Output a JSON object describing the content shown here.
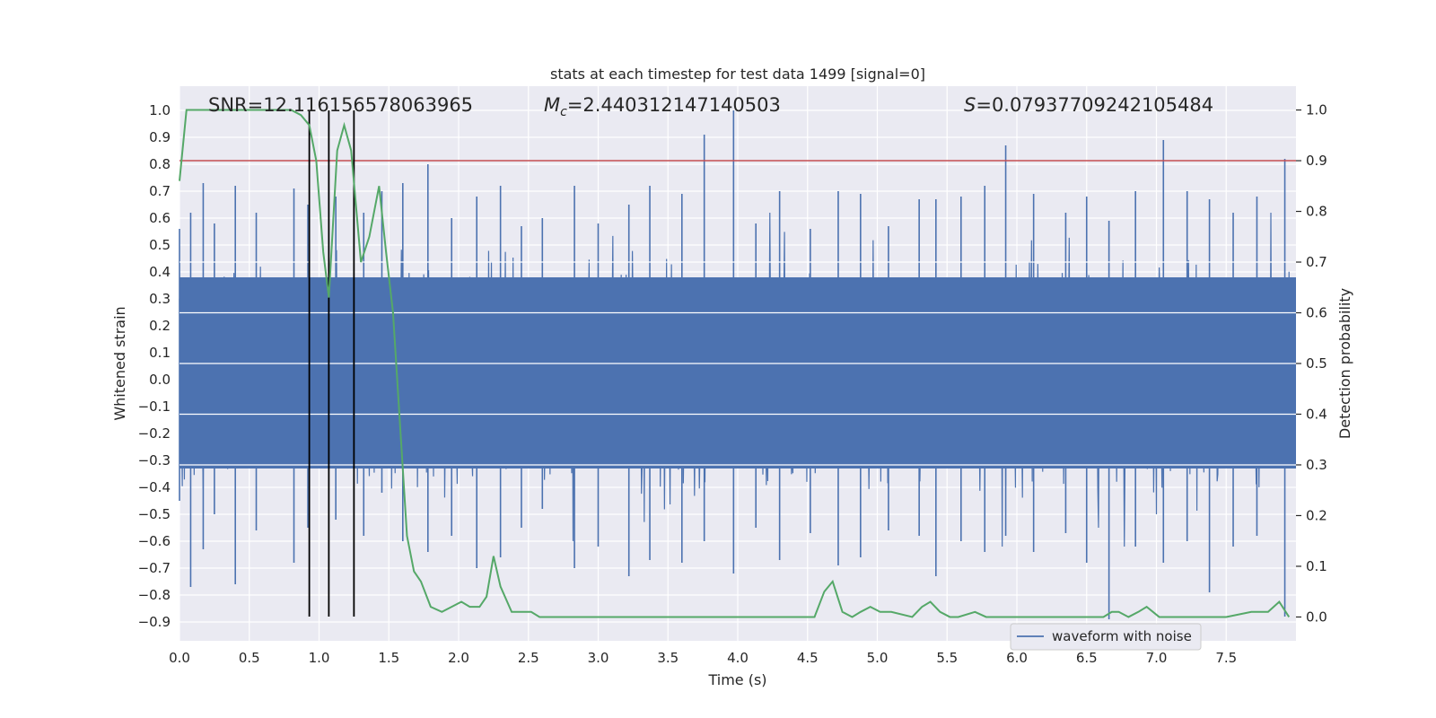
{
  "chart_data": {
    "type": "line",
    "title": "stats at each timestep for test data 1499 [signal=0]",
    "xlabel": "Time (s)",
    "ylabel": "Whitened strain",
    "y2label": "Detection probability",
    "xlim": [
      0.0,
      8.0
    ],
    "ylim": [
      -0.97,
      1.09
    ],
    "y2lim": [
      -0.047,
      1.047
    ],
    "xticks": [
      "0.0",
      "0.5",
      "1.0",
      "1.5",
      "2.0",
      "2.5",
      "3.0",
      "3.5",
      "4.0",
      "4.5",
      "5.0",
      "5.5",
      "6.0",
      "6.5",
      "7.0",
      "7.5"
    ],
    "yticks": [
      "−0.9",
      "−0.8",
      "−0.7",
      "−0.6",
      "−0.5",
      "−0.4",
      "−0.3",
      "−0.2",
      "−0.1",
      "0.0",
      "0.1",
      "0.2",
      "0.3",
      "0.4",
      "0.5",
      "0.6",
      "0.7",
      "0.8",
      "0.9",
      "1.0"
    ],
    "y2ticks": [
      "0.0",
      "0.1",
      "0.2",
      "0.3",
      "0.4",
      "0.5",
      "0.6",
      "0.7",
      "0.8",
      "0.9",
      "1.0"
    ],
    "grid": true,
    "legend_placement": "lower-right",
    "annotations": {
      "snr": "SNR=12.116156578063965",
      "mc_symbol": "M",
      "mc_sub": "c",
      "mc_value": "=2.440312147140503",
      "s_symbol": "S",
      "s_value": "=0.07937709242105484"
    },
    "series": [
      {
        "name": "waveform with noise",
        "axis": "left",
        "color": "#4c72b0",
        "style": "dense-noise",
        "spikes": [
          [
            0.0,
            0.56,
            -0.45
          ],
          [
            0.08,
            0.62,
            -0.77
          ],
          [
            0.17,
            0.73,
            -0.63
          ],
          [
            0.25,
            0.58,
            -0.5
          ],
          [
            0.4,
            0.72,
            -0.76
          ],
          [
            0.55,
            0.62,
            -0.56
          ],
          [
            0.82,
            0.71,
            -0.68
          ],
          [
            0.92,
            0.65,
            -0.55
          ],
          [
            1.12,
            0.68,
            -0.52
          ],
          [
            1.32,
            0.62,
            -0.58
          ],
          [
            1.45,
            0.7,
            -0.42
          ],
          [
            1.6,
            0.73,
            -0.6
          ],
          [
            1.78,
            0.8,
            -0.64
          ],
          [
            1.95,
            0.6,
            -0.58
          ],
          [
            2.13,
            0.68,
            -0.7
          ],
          [
            2.3,
            0.72,
            -0.66
          ],
          [
            2.45,
            0.57,
            -0.55
          ],
          [
            2.6,
            0.6,
            -0.48
          ],
          [
            2.83,
            0.72,
            -0.7
          ],
          [
            3.0,
            0.58,
            -0.62
          ],
          [
            3.22,
            0.65,
            -0.73
          ],
          [
            3.37,
            0.72,
            -0.67
          ],
          [
            3.6,
            0.69,
            -0.68
          ],
          [
            3.76,
            0.91,
            -0.6
          ],
          [
            3.97,
            1.0,
            -0.72
          ],
          [
            4.13,
            0.58,
            -0.55
          ],
          [
            4.3,
            0.7,
            -0.67
          ],
          [
            4.52,
            0.56,
            -0.57
          ],
          [
            4.72,
            0.7,
            -0.69
          ],
          [
            4.88,
            0.69,
            -0.66
          ],
          [
            5.08,
            0.57,
            -0.56
          ],
          [
            5.3,
            0.67,
            -0.58
          ],
          [
            5.42,
            0.67,
            -0.73
          ],
          [
            5.6,
            0.68,
            -0.6
          ],
          [
            5.77,
            0.72,
            -0.64
          ],
          [
            5.92,
            0.87,
            -0.58
          ],
          [
            6.12,
            0.69,
            -0.64
          ],
          [
            6.35,
            0.62,
            -0.57
          ],
          [
            6.5,
            0.68,
            -0.68
          ],
          [
            6.66,
            0.59,
            -0.89
          ],
          [
            6.85,
            0.7,
            -0.62
          ],
          [
            7.05,
            0.89,
            -0.68
          ],
          [
            7.22,
            0.7,
            -0.6
          ],
          [
            7.38,
            0.67,
            -0.79
          ],
          [
            7.55,
            0.62,
            -0.62
          ],
          [
            7.72,
            0.68,
            -0.58
          ],
          [
            7.92,
            0.82,
            -0.88
          ]
        ]
      },
      {
        "name": "",
        "axis": "right",
        "color": "#55a868",
        "x": [
          0.0,
          0.05,
          0.1,
          0.2,
          0.4,
          0.6,
          0.8,
          0.87,
          0.93,
          0.98,
          1.03,
          1.07,
          1.13,
          1.18,
          1.23,
          1.3,
          1.36,
          1.43,
          1.48,
          1.53,
          1.58,
          1.63,
          1.68,
          1.73,
          1.8,
          1.88,
          1.95,
          2.02,
          2.08,
          2.15,
          2.2,
          2.25,
          2.3,
          2.38,
          2.45,
          2.52,
          2.58,
          2.65,
          2.75,
          3.0,
          3.5,
          4.0,
          4.3,
          4.45,
          4.55,
          4.62,
          4.68,
          4.75,
          4.82,
          4.88,
          4.95,
          5.02,
          5.1,
          5.25,
          5.32,
          5.38,
          5.45,
          5.52,
          5.58,
          5.7,
          5.78,
          6.0,
          6.5,
          6.62,
          6.68,
          6.73,
          6.8,
          6.87,
          6.93,
          7.02,
          7.5,
          7.68,
          7.8,
          7.88,
          7.95
        ],
        "y": [
          0.86,
          1.0,
          1.0,
          1.0,
          1.0,
          1.0,
          1.0,
          0.99,
          0.97,
          0.9,
          0.72,
          0.63,
          0.92,
          0.97,
          0.92,
          0.7,
          0.75,
          0.85,
          0.72,
          0.6,
          0.38,
          0.16,
          0.09,
          0.07,
          0.02,
          0.01,
          0.02,
          0.03,
          0.02,
          0.02,
          0.04,
          0.12,
          0.06,
          0.01,
          0.01,
          0.01,
          0.0,
          0.0,
          0.0,
          0.0,
          0.0,
          0.0,
          0.0,
          0.0,
          0.0,
          0.05,
          0.07,
          0.01,
          0.0,
          0.01,
          0.02,
          0.01,
          0.01,
          0.0,
          0.02,
          0.03,
          0.01,
          0.0,
          0.0,
          0.01,
          0.0,
          0.0,
          0.0,
          0.0,
          0.01,
          0.01,
          0.0,
          0.01,
          0.02,
          0.0,
          0.0,
          0.01,
          0.01,
          0.03,
          0.0
        ]
      },
      {
        "name": "",
        "axis": "right",
        "color": "#c44e52",
        "threshold": 0.9
      }
    ],
    "vlines": {
      "x": [
        0.93,
        1.07,
        1.25
      ],
      "range": [
        -0.88,
        1.0
      ],
      "color": "#000000"
    },
    "noise_band_right": [
      0.3,
      0.7
    ],
    "noise_band_right_ticks": [
      0.3,
      0.4,
      0.5,
      0.6,
      0.7
    ]
  }
}
